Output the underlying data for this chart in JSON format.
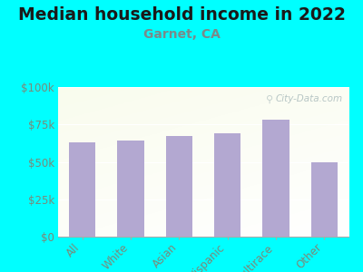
{
  "title": "Median household income in 2022",
  "subtitle": "Garnet, CA",
  "categories": [
    "All",
    "White",
    "Asian",
    "Hispanic",
    "Multirace",
    "Other"
  ],
  "values": [
    63000,
    64000,
    67000,
    69000,
    78000,
    50000
  ],
  "bar_color": "#b3a8d1",
  "background_outer": "#00ffff",
  "background_inner": "#e8f5e8",
  "title_color": "#1a1a1a",
  "subtitle_color": "#7a8a8a",
  "tick_label_color": "#7a8a7a",
  "ylim": [
    0,
    100000
  ],
  "yticks": [
    0,
    25000,
    50000,
    75000,
    100000
  ],
  "ytick_labels": [
    "$0",
    "$25k",
    "$50k",
    "$75k",
    "$100k"
  ],
  "watermark": "City-Data.com",
  "title_fontsize": 13.5,
  "subtitle_fontsize": 10,
  "tick_fontsize": 8.5
}
